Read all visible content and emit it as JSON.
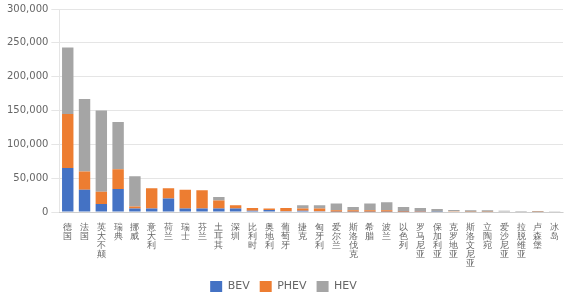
{
  "chart_data": {
    "type": "bar",
    "stacked": true,
    "categories": [
      "德\n国",
      "法\n国",
      "英\n大\n不\n颠",
      "瑞\n典",
      "挪\n威",
      "意\n大\n利",
      "荷\n兰",
      "瑞\n士",
      "芬\n兰",
      "土\n耳\n其",
      "深\n圳",
      "比\n利\n时",
      "奥\n地\n利",
      "葡\n萄\n牙",
      "捷\n克",
      "匈\n牙\n利",
      "爱\n尔\n兰",
      "斯\n洛\n伐\n克",
      "希\n腊",
      "波\n兰",
      "以\n色\n列",
      "罗\n马\n尼\n亚",
      "保\n加\n利\n亚",
      "克\n罗\n地\n亚",
      "斯\n洛\n文\n尼\n亚",
      "立\n陶\n宛",
      "爱\n沙\n尼\n亚",
      "拉\n脱\n维\n亚",
      "卢\n森\n堡",
      "冰\n岛"
    ],
    "series": [
      {
        "name": "BEV",
        "color": "#4472C4",
        "values": [
          65000,
          33000,
          12000,
          34000,
          5000,
          5000,
          20000,
          5000,
          5000,
          5000,
          5000,
          2000,
          3000,
          1000,
          2000,
          1000,
          500,
          500,
          500,
          500,
          500,
          500,
          500,
          0,
          0,
          0,
          0,
          0,
          0,
          0
        ]
      },
      {
        "name": "PHEV",
        "color": "#ED7D31",
        "values": [
          80000,
          27000,
          18000,
          29000,
          3000,
          30000,
          15000,
          28000,
          27000,
          12000,
          5000,
          4000,
          2000,
          5000,
          3000,
          4000,
          2000,
          2000,
          2000,
          2000,
          1000,
          500,
          0,
          1000,
          500,
          500,
          0,
          0,
          500,
          0
        ]
      },
      {
        "name": "HEV",
        "color": "#A5A5A5",
        "values": [
          98000,
          107000,
          120000,
          70000,
          45000,
          0,
          0,
          0,
          0,
          5000,
          0,
          0,
          0,
          0,
          5000,
          5000,
          10000,
          5000,
          10000,
          12000,
          6000,
          5000,
          4000,
          2000,
          2000,
          2000,
          2000,
          1500,
          1000,
          500
        ]
      }
    ],
    "ylim": [
      0,
      300000
    ],
    "yticks": [
      0,
      {
        "value": 50000,
        "label": "50,000"
      },
      {
        "value": 100000,
        "label": "100,000"
      },
      {
        "value": 150000,
        "label": "150,000"
      },
      {
        "value": 200000,
        "label": "200,000"
      },
      {
        "value": 250000,
        "label": "250,000"
      },
      {
        "value": 300000,
        "label": "300,000"
      }
    ],
    "grid": true,
    "legend": "bottom"
  }
}
